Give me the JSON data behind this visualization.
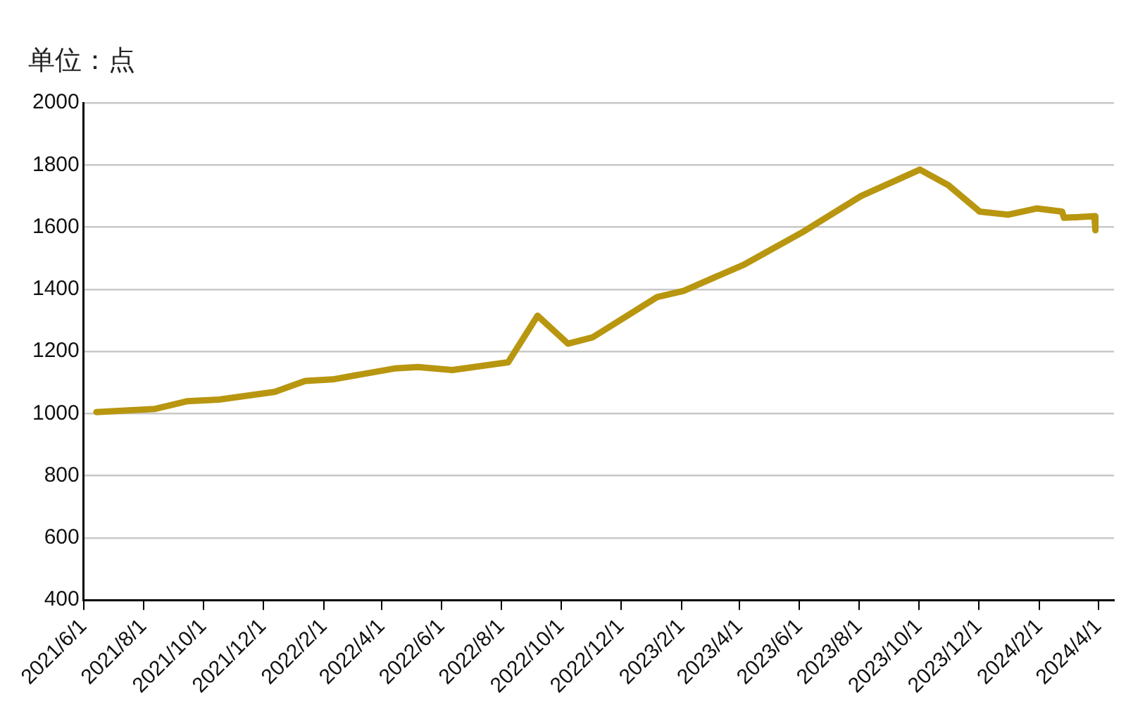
{
  "chart_data": {
    "type": "line",
    "ylabel": "单位：点",
    "color": "#b8960f",
    "x": [
      "2021-06-14",
      "2021-08-13",
      "2021-09-15",
      "2021-10-17",
      "2021-12-13",
      "2022-01-13",
      "2022-02-10",
      "2022-04-14",
      "2022-05-08",
      "2022-06-12",
      "2022-08-08",
      "2022-09-07",
      "2022-10-08",
      "2022-11-02",
      "2023-01-07",
      "2023-02-03",
      "2023-04-06",
      "2023-06-05",
      "2023-08-03",
      "2023-10-02",
      "2023-10-31",
      "2023-12-02",
      "2023-12-31",
      "2024-01-29",
      "2024-02-24",
      "2024-02-26",
      "2024-03-28",
      "2024-03-29"
    ],
    "values": [
      1005,
      1015,
      1040,
      1045,
      1070,
      1105,
      1110,
      1145,
      1150,
      1140,
      1165,
      1315,
      1225,
      1245,
      1375,
      1395,
      1480,
      1585,
      1700,
      1785,
      1735,
      1650,
      1640,
      1660,
      1650,
      1630,
      1635,
      1590
    ],
    "xlim": [
      "2021-06-01",
      "2024-04-17"
    ],
    "xticks": [
      {
        "value": "2021-06-01",
        "label": "2021/6/1"
      },
      {
        "value": "2021-08-01",
        "label": "2021/8/1"
      },
      {
        "value": "2021-10-01",
        "label": "2021/10/1"
      },
      {
        "value": "2021-12-01",
        "label": "2021/12/1"
      },
      {
        "value": "2022-02-01",
        "label": "2022/2/1"
      },
      {
        "value": "2022-04-01",
        "label": "2022/4/1"
      },
      {
        "value": "2022-06-01",
        "label": "2022/6/1"
      },
      {
        "value": "2022-08-01",
        "label": "2022/8/1"
      },
      {
        "value": "2022-10-01",
        "label": "2022/10/1"
      },
      {
        "value": "2022-12-01",
        "label": "2022/12/1"
      },
      {
        "value": "2023-02-01",
        "label": "2023/2/1"
      },
      {
        "value": "2023-04-01",
        "label": "2023/4/1"
      },
      {
        "value": "2023-06-01",
        "label": "2023/6/1"
      },
      {
        "value": "2023-08-01",
        "label": "2023/8/1"
      },
      {
        "value": "2023-10-01",
        "label": "2023/10/1"
      },
      {
        "value": "2023-12-01",
        "label": "2023/12/1"
      },
      {
        "value": "2024-02-01",
        "label": "2024/2/1"
      },
      {
        "value": "2024-04-01",
        "label": "2024/4/1"
      }
    ],
    "ylim": [
      400,
      2000
    ],
    "yticks": [
      400,
      600,
      800,
      1000,
      1200,
      1400,
      1600,
      1800,
      2000
    ],
    "grid": "y",
    "legend": false,
    "marker": "none",
    "line_style": "solid"
  }
}
